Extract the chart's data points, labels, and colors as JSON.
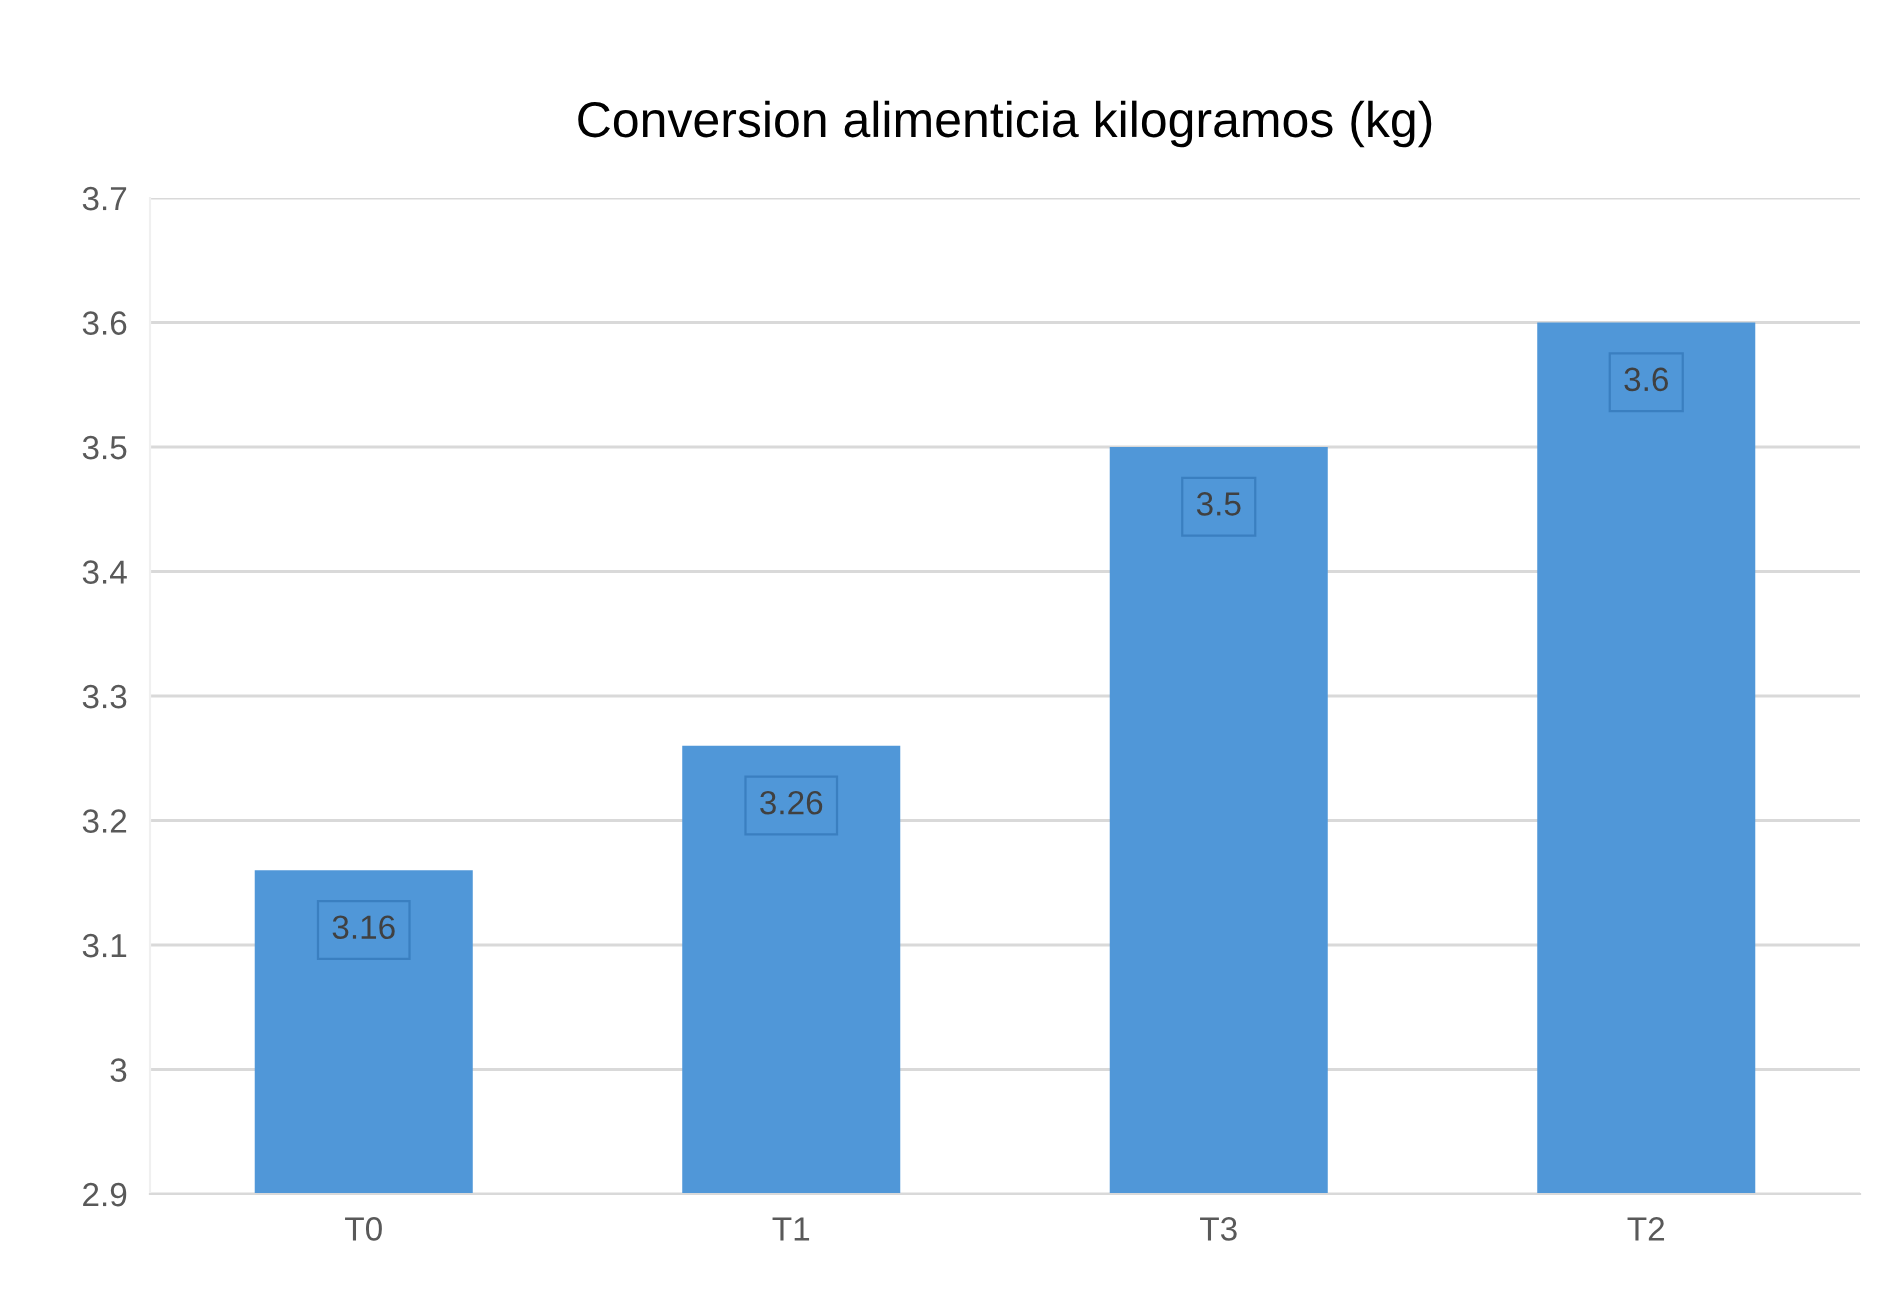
{
  "chart_data": {
    "type": "bar",
    "title": "Conversion alimenticia kilogramos (kg)",
    "categories": [
      "T0",
      "T1",
      "T3",
      "T2"
    ],
    "values": [
      3.16,
      3.26,
      3.5,
      3.6
    ],
    "color": "#5097d8",
    "ylim": [
      2.9,
      3.7
    ],
    "yticks": [
      2.9,
      3,
      3.1,
      3.2,
      3.3,
      3.4,
      3.5,
      3.6,
      3.7
    ],
    "grid": "y",
    "data_labels": true,
    "legend": false
  }
}
